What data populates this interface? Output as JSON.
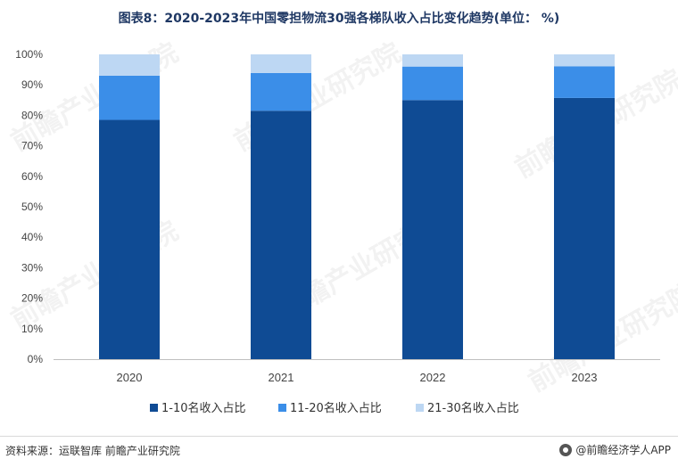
{
  "title": "图表8：2020-2023年中国零担物流30强各梯队收入占比变化趋势(单位：  %)",
  "source": "资料来源：运联智库 前瞻产业研究院",
  "brand": "@前瞻经济学人APP",
  "watermark": "前瞻产业研究院",
  "chart_data": {
    "type": "bar",
    "stacked": true,
    "categories": [
      "2020",
      "2021",
      "2022",
      "2023"
    ],
    "series": [
      {
        "name": "1-10名收入占比",
        "values": [
          78.5,
          81.5,
          85.0,
          85.7
        ],
        "color": "#0f4b94"
      },
      {
        "name": "11-20名收入占比",
        "values": [
          14.5,
          12.4,
          11.0,
          10.4
        ],
        "color": "#3b8ee8"
      },
      {
        "name": "21-30名收入占比",
        "values": [
          7.0,
          6.1,
          4.0,
          3.9
        ],
        "color": "#bdd7f3"
      }
    ],
    "ylim": [
      0,
      100
    ],
    "yticks": [
      "0%",
      "10%",
      "20%",
      "30%",
      "40%",
      "50%",
      "60%",
      "70%",
      "80%",
      "90%",
      "100%"
    ],
    "grid": false,
    "legend": "bottom"
  }
}
